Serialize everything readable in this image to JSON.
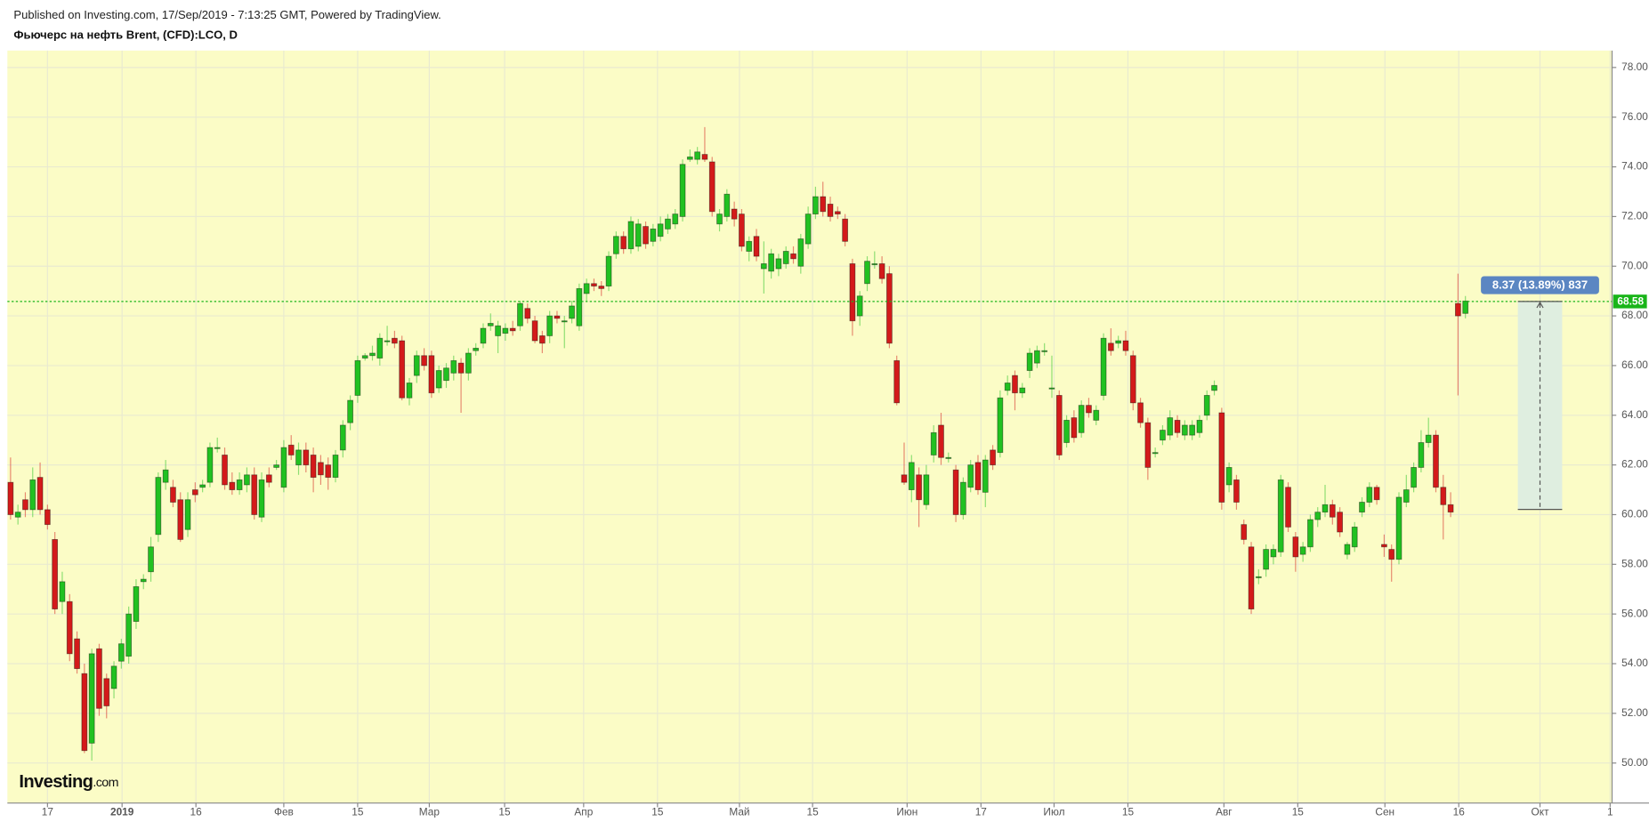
{
  "header": {
    "published": "Published on Investing.com, 17/Sep/2019 - 7:13:25 GMT, Powered by TradingView.",
    "instrument": "Фьючерс на нефть Brent, (CFD):LCO, D"
  },
  "logo": {
    "name": "Investing",
    "suffix": ".com"
  },
  "chart_data": {
    "type": "candlestick",
    "up_color": "#21c121",
    "down_color": "#d31a1a",
    "background": "#fbfcc6",
    "grid": true,
    "ylim": [
      48.39,
      78.68
    ],
    "xlim": [
      -0.43,
      216.86
    ],
    "yticks": [
      {
        "value": 50,
        "label": "50.00"
      },
      {
        "value": 52,
        "label": "52.00"
      },
      {
        "value": 54,
        "label": "54.00"
      },
      {
        "value": 56,
        "label": "56.00"
      },
      {
        "value": 58,
        "label": "58.00"
      },
      {
        "value": 60,
        "label": "60.00"
      },
      {
        "value": 62,
        "label": "62.00"
      },
      {
        "value": 64,
        "label": "64.00"
      },
      {
        "value": 66,
        "label": "66.00"
      },
      {
        "value": 68,
        "label": "68.00"
      },
      {
        "value": 70,
        "label": "70.00"
      },
      {
        "value": 72,
        "label": "72.00"
      },
      {
        "value": 74,
        "label": "74.00"
      },
      {
        "value": 76,
        "label": "76.00"
      },
      {
        "value": 78,
        "label": "78.00"
      }
    ],
    "xticks": [
      {
        "value": 5,
        "label": "17"
      },
      {
        "value": 15.1,
        "label": "2019"
      },
      {
        "value": 25.1,
        "label": "16"
      },
      {
        "value": 37,
        "label": "Фев"
      },
      {
        "value": 47,
        "label": "15"
      },
      {
        "value": 56.7,
        "label": "Мар"
      },
      {
        "value": 66.9,
        "label": "15"
      },
      {
        "value": 77.6,
        "label": "Апр"
      },
      {
        "value": 87.6,
        "label": "15"
      },
      {
        "value": 98.7,
        "label": "Май"
      },
      {
        "value": 108.6,
        "label": "15"
      },
      {
        "value": 121.4,
        "label": "Июн"
      },
      {
        "value": 131.4,
        "label": "17"
      },
      {
        "value": 141.3,
        "label": "Июл"
      },
      {
        "value": 151.3,
        "label": "15"
      },
      {
        "value": 164.3,
        "label": "Авг"
      },
      {
        "value": 174.3,
        "label": "15"
      },
      {
        "value": 186.1,
        "label": "Сен"
      },
      {
        "value": 196.1,
        "label": "16"
      },
      {
        "value": 207.1,
        "label": "Окт"
      },
      {
        "value": 216.6,
        "label": "1"
      }
    ],
    "last_price": {
      "value": 68.58,
      "label": "68.58",
      "color": "#19b519"
    },
    "measure": {
      "from": 60.21,
      "to": 68.58,
      "label": "8.37 (13.89%) 837"
    },
    "ohlc": [
      [
        61.3,
        62.3,
        59.8,
        60.0
      ],
      [
        59.9,
        60.4,
        59.6,
        60.1
      ],
      [
        60.6,
        60.9,
        59.9,
        60.2
      ],
      [
        60.2,
        61.9,
        59.9,
        61.4
      ],
      [
        61.5,
        62.1,
        60.0,
        60.2
      ],
      [
        60.2,
        60.4,
        59.4,
        59.6
      ],
      [
        59.0,
        59.3,
        56.0,
        56.2
      ],
      [
        56.5,
        57.7,
        56.0,
        57.3
      ],
      [
        56.5,
        56.8,
        54.1,
        54.4
      ],
      [
        55.0,
        55.3,
        53.6,
        53.8
      ],
      [
        53.6,
        54.0,
        50.4,
        50.5
      ],
      [
        50.8,
        54.6,
        50.1,
        54.4
      ],
      [
        54.6,
        54.8,
        51.9,
        52.2
      ],
      [
        53.4,
        53.6,
        51.8,
        52.3
      ],
      [
        53.0,
        54.1,
        52.6,
        53.9
      ],
      [
        54.1,
        55.0,
        53.8,
        54.8
      ],
      [
        54.3,
        56.3,
        54.0,
        56.0
      ],
      [
        55.7,
        57.4,
        55.4,
        57.1
      ],
      [
        57.3,
        57.6,
        57.0,
        57.4
      ],
      [
        57.7,
        59.1,
        57.3,
        58.7
      ],
      [
        59.2,
        61.7,
        58.9,
        61.5
      ],
      [
        61.3,
        62.2,
        61.0,
        61.8
      ],
      [
        61.1,
        61.4,
        60.3,
        60.5
      ],
      [
        60.6,
        60.9,
        58.9,
        59.0
      ],
      [
        59.4,
        60.9,
        59.1,
        60.6
      ],
      [
        61.0,
        61.3,
        60.5,
        60.8
      ],
      [
        61.1,
        61.4,
        60.9,
        61.2
      ],
      [
        61.3,
        62.9,
        61.1,
        62.7
      ],
      [
        62.7,
        63.1,
        62.5,
        62.7
      ],
      [
        62.4,
        62.7,
        61.0,
        61.2
      ],
      [
        61.3,
        61.7,
        60.8,
        61.0
      ],
      [
        61.0,
        61.7,
        60.8,
        61.4
      ],
      [
        61.2,
        61.9,
        60.9,
        61.6
      ],
      [
        61.6,
        61.9,
        59.8,
        60.0
      ],
      [
        59.9,
        61.7,
        59.7,
        61.4
      ],
      [
        61.6,
        61.9,
        61.1,
        61.3
      ],
      [
        61.9,
        62.2,
        61.8,
        62.0
      ],
      [
        61.1,
        63.0,
        60.9,
        62.7
      ],
      [
        62.8,
        63.2,
        62.2,
        62.4
      ],
      [
        62.0,
        62.9,
        61.6,
        62.6
      ],
      [
        62.6,
        62.9,
        61.7,
        62.0
      ],
      [
        62.4,
        62.7,
        60.9,
        61.5
      ],
      [
        62.1,
        62.4,
        61.2,
        61.6
      ],
      [
        62.0,
        62.3,
        61.0,
        61.5
      ],
      [
        61.5,
        62.6,
        61.3,
        62.4
      ],
      [
        62.6,
        63.8,
        62.3,
        63.6
      ],
      [
        63.7,
        64.8,
        63.4,
        64.6
      ],
      [
        64.8,
        66.4,
        64.5,
        66.2
      ],
      [
        66.3,
        66.5,
        66.2,
        66.4
      ],
      [
        66.4,
        66.8,
        66.2,
        66.5
      ],
      [
        66.3,
        67.3,
        66.0,
        67.1
      ],
      [
        67.0,
        67.6,
        66.8,
        67.0
      ],
      [
        67.1,
        67.4,
        66.7,
        66.9
      ],
      [
        67.0,
        67.2,
        64.6,
        64.7
      ],
      [
        64.7,
        65.5,
        64.4,
        65.3
      ],
      [
        65.6,
        66.6,
        65.3,
        66.4
      ],
      [
        66.4,
        66.7,
        65.8,
        66.0
      ],
      [
        66.4,
        66.6,
        64.7,
        64.9
      ],
      [
        65.1,
        66.0,
        64.9,
        65.8
      ],
      [
        65.4,
        66.1,
        65.1,
        65.9
      ],
      [
        65.7,
        66.4,
        65.4,
        66.2
      ],
      [
        66.1,
        66.3,
        64.1,
        65.7
      ],
      [
        65.7,
        66.7,
        65.4,
        66.5
      ],
      [
        66.6,
        66.9,
        66.4,
        66.7
      ],
      [
        66.9,
        67.7,
        66.7,
        67.5
      ],
      [
        67.6,
        68.1,
        67.4,
        67.7
      ],
      [
        67.2,
        67.8,
        66.5,
        67.6
      ],
      [
        67.3,
        67.7,
        67.0,
        67.5
      ],
      [
        67.5,
        67.8,
        67.2,
        67.4
      ],
      [
        67.6,
        68.6,
        67.4,
        68.5
      ],
      [
        68.3,
        68.5,
        67.7,
        67.9
      ],
      [
        67.8,
        68.0,
        66.9,
        67.0
      ],
      [
        67.2,
        67.4,
        66.5,
        66.9
      ],
      [
        67.2,
        68.2,
        66.9,
        68.0
      ],
      [
        68.0,
        68.2,
        67.7,
        67.9
      ],
      [
        67.8,
        68.0,
        66.7,
        67.8
      ],
      [
        67.9,
        68.6,
        67.7,
        68.4
      ],
      [
        67.6,
        69.3,
        67.4,
        69.1
      ],
      [
        68.9,
        69.5,
        68.6,
        69.3
      ],
      [
        69.3,
        69.5,
        69.0,
        69.2
      ],
      [
        69.2,
        69.4,
        68.8,
        69.1
      ],
      [
        69.2,
        70.6,
        69.0,
        70.4
      ],
      [
        70.5,
        71.4,
        70.3,
        71.2
      ],
      [
        71.2,
        71.4,
        70.5,
        70.7
      ],
      [
        70.7,
        72.0,
        70.5,
        71.8
      ],
      [
        70.8,
        71.9,
        70.6,
        71.7
      ],
      [
        71.6,
        71.8,
        70.7,
        70.9
      ],
      [
        71.0,
        71.7,
        70.8,
        71.5
      ],
      [
        71.2,
        72.0,
        71.0,
        71.7
      ],
      [
        71.5,
        72.1,
        71.3,
        71.9
      ],
      [
        71.7,
        72.3,
        71.5,
        72.1
      ],
      [
        72.0,
        74.3,
        71.8,
        74.1
      ],
      [
        74.3,
        74.7,
        74.2,
        74.4
      ],
      [
        74.3,
        74.8,
        74.1,
        74.6
      ],
      [
        74.5,
        75.6,
        74.2,
        74.3
      ],
      [
        74.2,
        74.4,
        72.0,
        72.2
      ],
      [
        71.7,
        72.3,
        71.4,
        72.1
      ],
      [
        72.0,
        73.1,
        71.8,
        72.9
      ],
      [
        72.3,
        72.6,
        71.6,
        71.9
      ],
      [
        72.1,
        72.3,
        70.6,
        70.8
      ],
      [
        70.6,
        71.2,
        70.2,
        71.0
      ],
      [
        71.2,
        71.5,
        70.2,
        70.4
      ],
      [
        69.9,
        71.0,
        68.9,
        70.1
      ],
      [
        69.8,
        70.7,
        69.5,
        70.5
      ],
      [
        69.9,
        70.5,
        69.6,
        70.3
      ],
      [
        70.1,
        70.8,
        69.9,
        70.6
      ],
      [
        70.5,
        70.8,
        70.1,
        70.3
      ],
      [
        70.0,
        71.3,
        69.7,
        71.1
      ],
      [
        70.9,
        72.4,
        70.7,
        72.1
      ],
      [
        72.1,
        73.2,
        71.9,
        72.8
      ],
      [
        72.8,
        73.4,
        72.0,
        72.2
      ],
      [
        72.5,
        72.8,
        71.8,
        72.0
      ],
      [
        72.2,
        72.4,
        71.9,
        72.1
      ],
      [
        71.9,
        72.1,
        70.8,
        71.0
      ],
      [
        70.1,
        70.3,
        67.2,
        67.8
      ],
      [
        68.0,
        69.0,
        67.6,
        68.8
      ],
      [
        69.3,
        70.4,
        69.0,
        70.2
      ],
      [
        70.1,
        70.6,
        69.9,
        70.1
      ],
      [
        70.1,
        70.4,
        69.3,
        69.5
      ],
      [
        69.7,
        70.0,
        66.7,
        66.9
      ],
      [
        66.2,
        66.4,
        64.4,
        64.5
      ],
      [
        61.6,
        62.9,
        61.2,
        61.3
      ],
      [
        61.0,
        62.4,
        60.5,
        62.1
      ],
      [
        61.6,
        61.9,
        59.5,
        60.6
      ],
      [
        60.4,
        62.0,
        60.2,
        61.6
      ],
      [
        62.4,
        63.6,
        62.1,
        63.3
      ],
      [
        63.6,
        64.1,
        62.0,
        62.3
      ],
      [
        62.3,
        62.5,
        62.1,
        62.3
      ],
      [
        61.8,
        62.0,
        59.7,
        60.0
      ],
      [
        60.0,
        61.5,
        59.8,
        61.3
      ],
      [
        61.1,
        62.2,
        60.9,
        62.0
      ],
      [
        62.1,
        62.4,
        60.8,
        61.0
      ],
      [
        60.9,
        62.4,
        60.3,
        62.2
      ],
      [
        62.6,
        62.8,
        61.8,
        62.0
      ],
      [
        62.5,
        65.0,
        62.3,
        64.7
      ],
      [
        65.0,
        65.6,
        64.8,
        65.3
      ],
      [
        65.6,
        65.8,
        64.2,
        64.9
      ],
      [
        64.9,
        65.3,
        64.7,
        65.1
      ],
      [
        65.8,
        66.7,
        65.5,
        66.5
      ],
      [
        66.1,
        66.8,
        65.9,
        66.6
      ],
      [
        66.6,
        66.9,
        66.4,
        66.6
      ],
      [
        65.1,
        66.4,
        64.7,
        65.1
      ],
      [
        64.8,
        65.0,
        62.2,
        62.4
      ],
      [
        62.9,
        64.0,
        62.7,
        63.8
      ],
      [
        63.9,
        64.2,
        62.9,
        63.1
      ],
      [
        63.3,
        64.6,
        63.1,
        64.4
      ],
      [
        64.4,
        64.7,
        63.9,
        64.1
      ],
      [
        63.8,
        64.4,
        63.6,
        64.2
      ],
      [
        64.8,
        67.3,
        64.6,
        67.1
      ],
      [
        66.9,
        67.5,
        66.4,
        66.6
      ],
      [
        66.9,
        67.2,
        66.7,
        67.0
      ],
      [
        67.0,
        67.4,
        66.4,
        66.6
      ],
      [
        66.4,
        66.6,
        64.2,
        64.5
      ],
      [
        64.5,
        64.7,
        63.5,
        63.7
      ],
      [
        63.7,
        63.9,
        61.4,
        61.9
      ],
      [
        62.5,
        62.7,
        62.3,
        62.5
      ],
      [
        63.0,
        63.6,
        62.8,
        63.4
      ],
      [
        63.2,
        64.2,
        63.0,
        63.9
      ],
      [
        63.8,
        64.0,
        63.1,
        63.3
      ],
      [
        63.2,
        63.8,
        63.0,
        63.6
      ],
      [
        63.2,
        63.8,
        63.0,
        63.6
      ],
      [
        63.3,
        64.0,
        63.1,
        63.8
      ],
      [
        64.0,
        65.0,
        63.8,
        64.8
      ],
      [
        65.0,
        65.4,
        64.8,
        65.2
      ],
      [
        64.1,
        64.3,
        60.2,
        60.5
      ],
      [
        61.2,
        62.1,
        60.9,
        61.9
      ],
      [
        61.4,
        61.6,
        60.2,
        60.5
      ],
      [
        59.6,
        59.8,
        58.8,
        59.0
      ],
      [
        58.7,
        58.9,
        56.0,
        56.2
      ],
      [
        57.5,
        57.8,
        57.2,
        57.5
      ],
      [
        57.8,
        58.8,
        57.5,
        58.6
      ],
      [
        58.3,
        58.8,
        58.0,
        58.6
      ],
      [
        58.5,
        61.6,
        58.3,
        61.4
      ],
      [
        61.1,
        61.3,
        59.3,
        59.5
      ],
      [
        59.1,
        59.3,
        57.7,
        58.3
      ],
      [
        58.4,
        58.9,
        58.1,
        58.7
      ],
      [
        58.7,
        60.0,
        58.5,
        59.8
      ],
      [
        59.8,
        60.3,
        59.5,
        60.1
      ],
      [
        60.1,
        61.2,
        59.9,
        60.4
      ],
      [
        60.4,
        60.6,
        59.6,
        59.9
      ],
      [
        60.1,
        60.3,
        59.1,
        59.3
      ],
      [
        58.4,
        58.9,
        58.2,
        58.8
      ],
      [
        58.7,
        59.7,
        58.5,
        59.5
      ],
      [
        60.1,
        60.7,
        59.9,
        60.5
      ],
      [
        60.5,
        61.3,
        60.3,
        61.1
      ],
      [
        61.1,
        61.2,
        60.4,
        60.6
      ],
      [
        58.8,
        59.2,
        58.3,
        58.7
      ],
      [
        58.6,
        58.8,
        57.3,
        58.2
      ],
      [
        58.2,
        60.9,
        58.0,
        60.7
      ],
      [
        60.5,
        61.6,
        60.3,
        61.0
      ],
      [
        61.1,
        62.1,
        60.9,
        61.9
      ],
      [
        61.9,
        63.4,
        61.7,
        62.9
      ],
      [
        62.9,
        63.9,
        62.7,
        63.2
      ],
      [
        63.2,
        63.4,
        60.9,
        61.1
      ],
      [
        61.1,
        61.6,
        59.0,
        60.4
      ],
      [
        60.4,
        60.9,
        59.9,
        60.1
      ],
      [
        68.5,
        69.7,
        64.8,
        68.0
      ],
      [
        68.1,
        68.8,
        67.9,
        68.6
      ]
    ]
  }
}
